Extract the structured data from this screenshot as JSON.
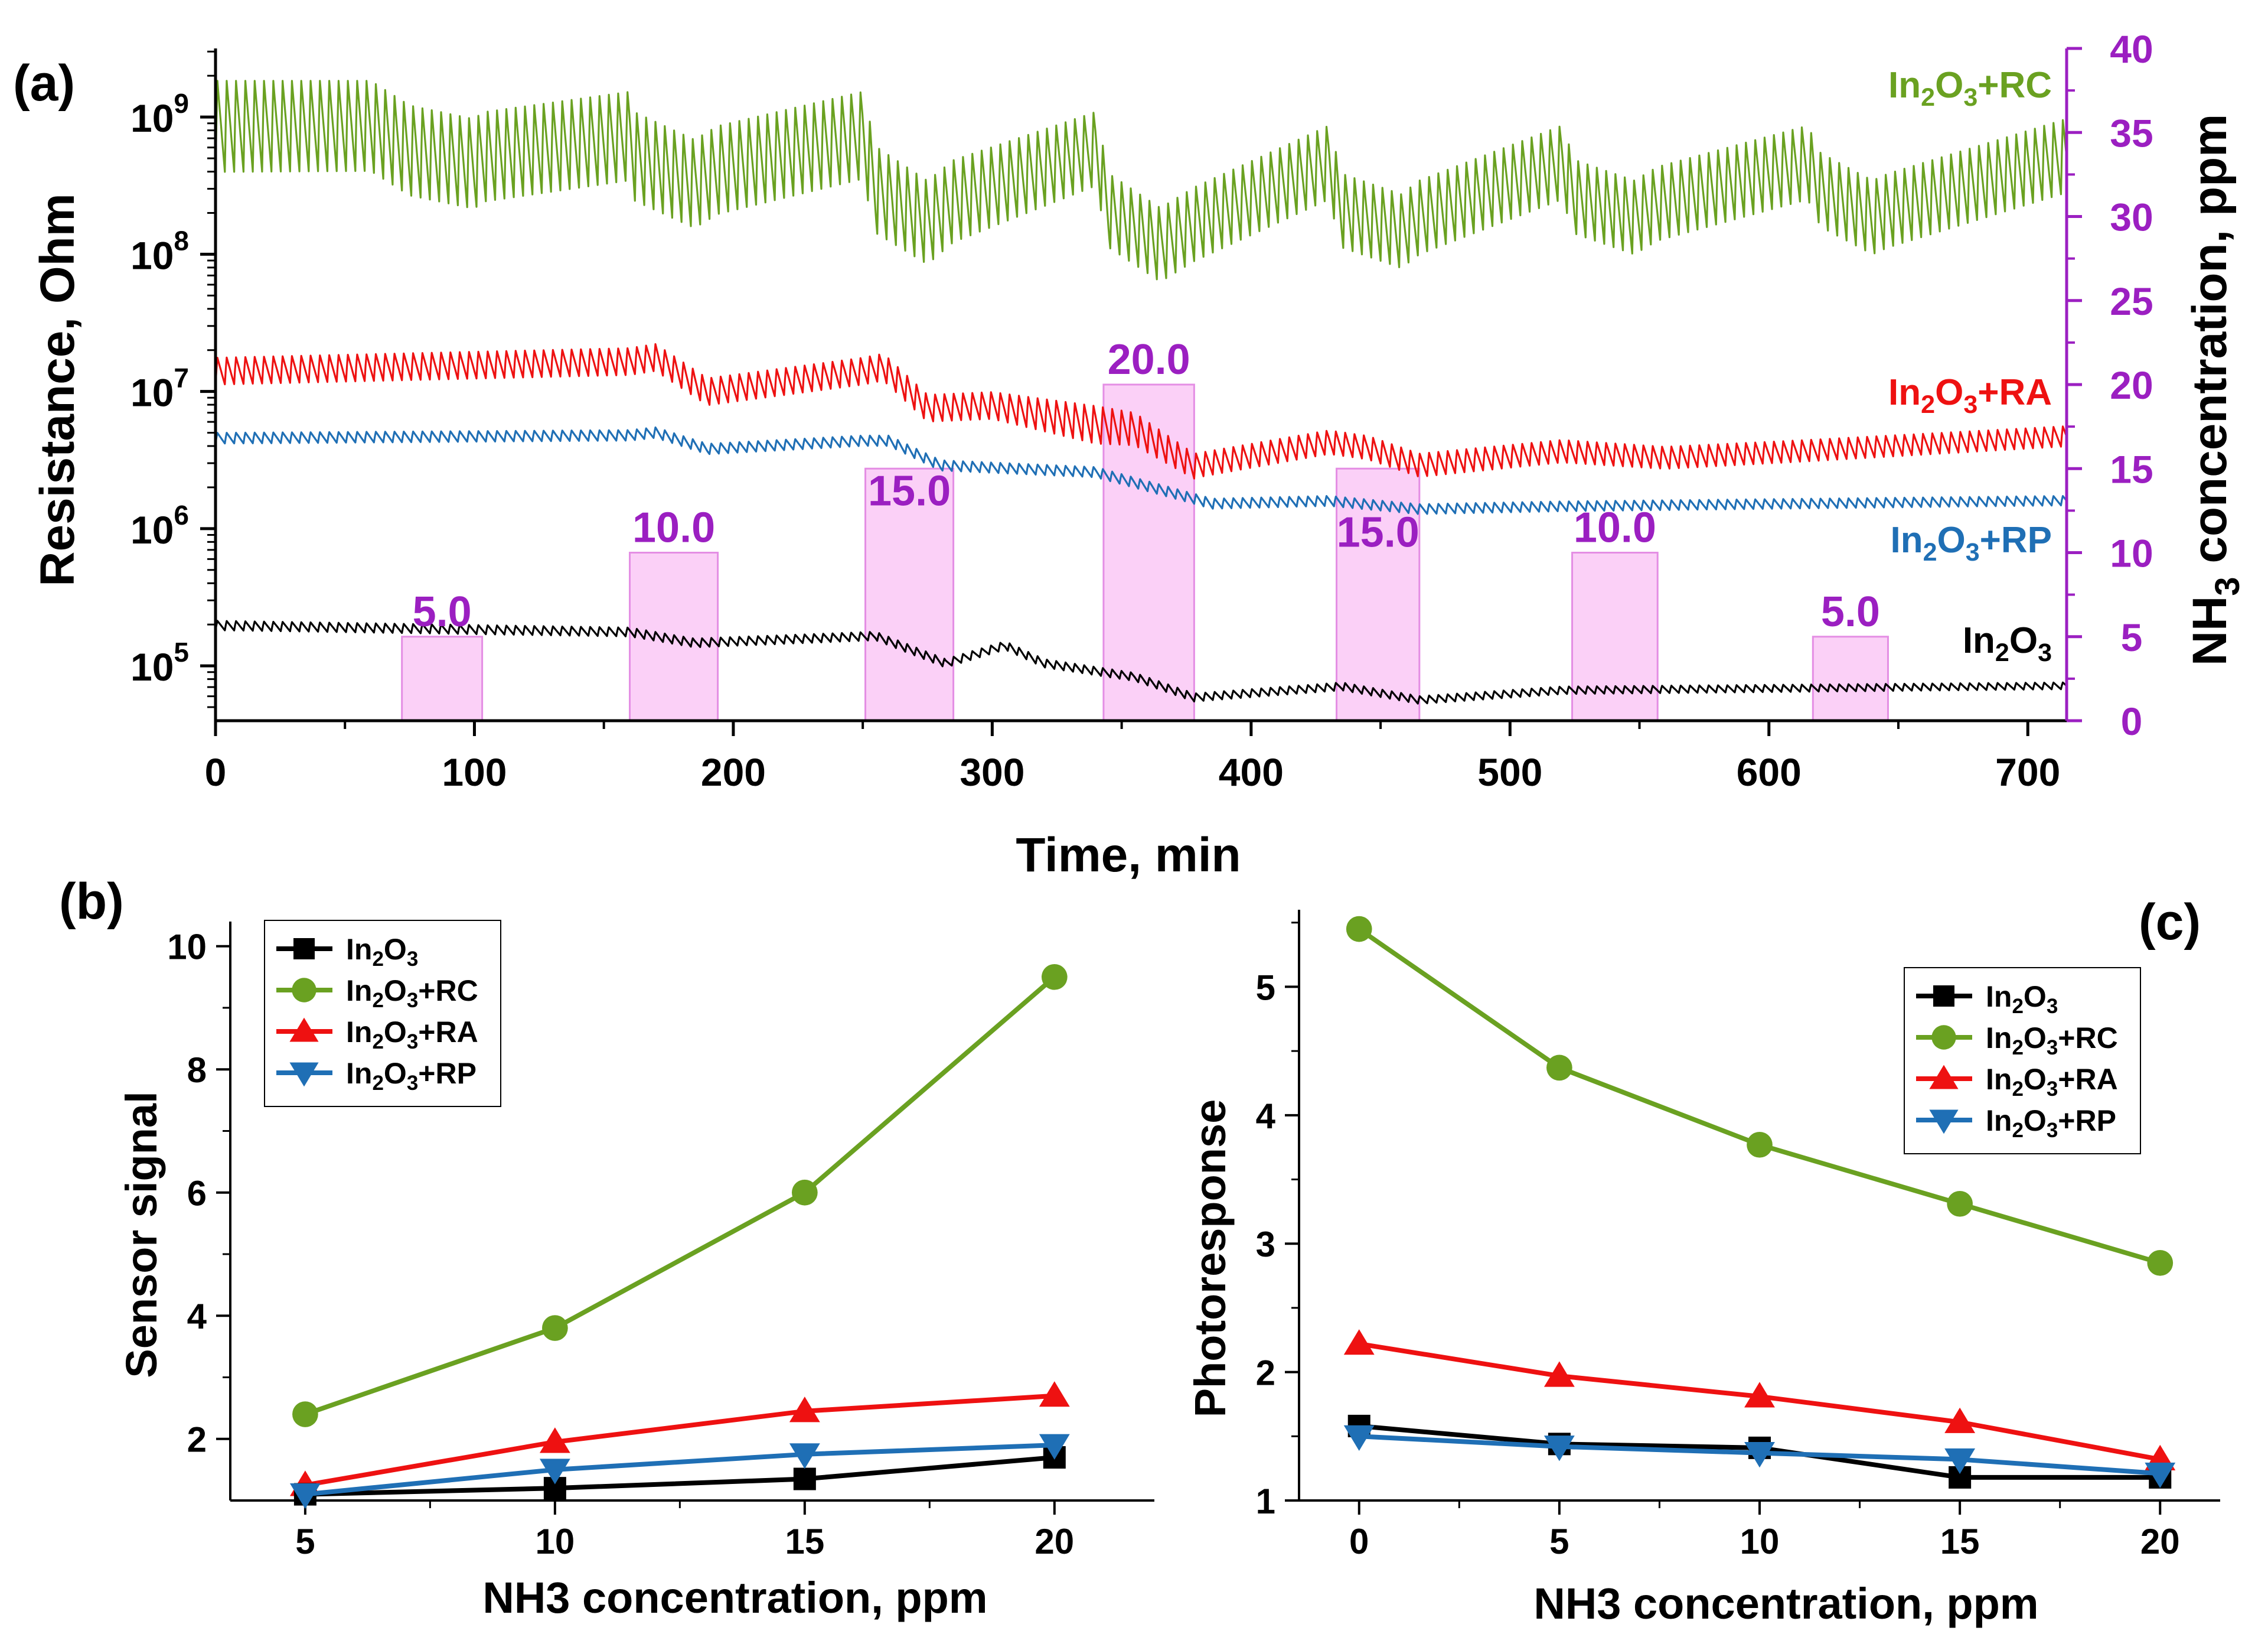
{
  "colors": {
    "black": "#000000",
    "green": "#6aa121",
    "red": "#ee1111",
    "blue": "#1f6fb5",
    "purple": "#9b1fc1",
    "bar_fill": "#fbd0f7",
    "bar_edge": "#e48ee4"
  },
  "chart_data": [
    {
      "panel": "(a)",
      "type": "line",
      "xlabel": "Time, min",
      "ylabel": "Resistance, Ohm",
      "y2label": "NH3 concentration, ppm",
      "xlim": [
        0,
        715
      ],
      "ylim_log10": [
        4.6,
        9.5
      ],
      "y2lim": [
        0,
        40
      ],
      "xticks": [
        "0",
        "100",
        "200",
        "300",
        "400",
        "500",
        "600",
        "700"
      ],
      "yticks": [
        {
          "base": "10",
          "exp": "5"
        },
        {
          "base": "10",
          "exp": "6"
        },
        {
          "base": "10",
          "exp": "7"
        },
        {
          "base": "10",
          "exp": "8"
        },
        {
          "base": "10",
          "exp": "9"
        }
      ],
      "y2ticks": [
        "0",
        "5",
        "10",
        "15",
        "20",
        "25",
        "30",
        "35",
        "40"
      ],
      "series_labels": [
        {
          "main": "In",
          "sub1": "2",
          "mid": "O",
          "sub2": "3",
          "tail": "+RC"
        },
        {
          "main": "In",
          "sub1": "2",
          "mid": "O",
          "sub2": "3",
          "tail": "+RA"
        },
        {
          "main": "In",
          "sub1": "2",
          "mid": "O",
          "sub2": "3",
          "tail": "+RP"
        },
        {
          "main": "In",
          "sub1": "2",
          "mid": "O",
          "sub2": "3",
          "tail": ""
        }
      ],
      "nh3_pulses": [
        {
          "start": 72,
          "end": 103,
          "ppm": 5.0,
          "label": "5.0"
        },
        {
          "start": 160,
          "end": 194,
          "ppm": 10.0,
          "label": "10.0"
        },
        {
          "start": 251,
          "end": 285,
          "ppm": 15.0,
          "label": "15.0"
        },
        {
          "start": 343,
          "end": 378,
          "ppm": 20.0,
          "label": "20.0"
        },
        {
          "start": 433,
          "end": 465,
          "ppm": 15.0,
          "label": "15.0"
        },
        {
          "start": 524,
          "end": 557,
          "ppm": 10.0,
          "label": "10.0"
        },
        {
          "start": 617,
          "end": 646,
          "ppm": 5.0,
          "label": "5.0"
        }
      ],
      "resistance_profiles_log10": {
        "In2O3+RC": {
          "top": [
            [
              0,
              9.28
            ],
            [
              60,
              9.28
            ],
            [
              75,
              9.1
            ],
            [
              100,
              9.0
            ],
            [
              103,
              9.05
            ],
            [
              160,
              9.2
            ],
            [
              162,
              9.05
            ],
            [
              185,
              8.85
            ],
            [
              194,
              8.95
            ],
            [
              250,
              9.2
            ],
            [
              255,
              8.8
            ],
            [
              275,
              8.55
            ],
            [
              285,
              8.7
            ],
            [
              340,
              9.05
            ],
            [
              345,
              8.6
            ],
            [
              365,
              8.35
            ],
            [
              378,
              8.5
            ],
            [
              430,
              8.95
            ],
            [
              435,
              8.6
            ],
            [
              458,
              8.45
            ],
            [
              465,
              8.55
            ],
            [
              520,
              8.95
            ],
            [
              525,
              8.7
            ],
            [
              548,
              8.55
            ],
            [
              557,
              8.65
            ],
            [
              615,
              8.95
            ],
            [
              620,
              8.75
            ],
            [
              640,
              8.55
            ],
            [
              646,
              8.6
            ],
            [
              715,
              9.0
            ]
          ],
          "amp": [
            [
              0,
              0.68
            ],
            [
              250,
              0.65
            ],
            [
              340,
              0.55
            ],
            [
              715,
              0.55
            ]
          ],
          "period": 3.6
        },
        "In2O3+RA": {
          "top": [
            [
              0,
              7.25
            ],
            [
              160,
              7.32
            ],
            [
              170,
              7.35
            ],
            [
              190,
              7.1
            ],
            [
              250,
              7.25
            ],
            [
              258,
              7.28
            ],
            [
              275,
              6.98
            ],
            [
              300,
              7.0
            ],
            [
              340,
              6.9
            ],
            [
              355,
              6.85
            ],
            [
              378,
              6.55
            ],
            [
              430,
              6.72
            ],
            [
              445,
              6.68
            ],
            [
              465,
              6.55
            ],
            [
              520,
              6.65
            ],
            [
              560,
              6.6
            ],
            [
              615,
              6.65
            ],
            [
              715,
              6.75
            ]
          ],
          "amp": [
            [
              0,
              0.2
            ],
            [
              300,
              0.2
            ],
            [
              340,
              0.28
            ],
            [
              380,
              0.18
            ],
            [
              715,
              0.15
            ]
          ],
          "period": 3.6
        },
        "In2O3+RP": {
          "top": [
            [
              0,
              6.7
            ],
            [
              160,
              6.72
            ],
            [
              170,
              6.74
            ],
            [
              190,
              6.62
            ],
            [
              250,
              6.68
            ],
            [
              260,
              6.68
            ],
            [
              280,
              6.5
            ],
            [
              340,
              6.45
            ],
            [
              385,
              6.22
            ],
            [
              430,
              6.24
            ],
            [
              465,
              6.18
            ],
            [
              520,
              6.2
            ],
            [
              715,
              6.24
            ]
          ],
          "amp": [
            [
              0,
              0.08
            ],
            [
              715,
              0.07
            ]
          ],
          "period": 3.6
        },
        "In2O3": {
          "top": [
            [
              0,
              5.33
            ],
            [
              160,
              5.28
            ],
            [
              185,
              5.2
            ],
            [
              255,
              5.25
            ],
            [
              282,
              5.05
            ],
            [
              305,
              5.18
            ],
            [
              320,
              5.05
            ],
            [
              355,
              4.95
            ],
            [
              378,
              4.8
            ],
            [
              435,
              4.88
            ],
            [
              465,
              4.78
            ],
            [
              520,
              4.85
            ],
            [
              715,
              4.88
            ]
          ],
          "amp": [
            [
              0,
              0.07
            ],
            [
              715,
              0.05
            ]
          ],
          "period": 3.6
        }
      }
    },
    {
      "panel": "(b)",
      "type": "line",
      "xlabel": "NH3 concentration, ppm",
      "ylabel": "Sensor signal",
      "xlim": [
        3.5,
        22
      ],
      "ylim": [
        1,
        10.4
      ],
      "xticks": [
        "5",
        "10",
        "15",
        "20"
      ],
      "yticks": [
        "2",
        "4",
        "6",
        "8",
        "10"
      ],
      "x": [
        5,
        10,
        15,
        20
      ],
      "series": [
        {
          "name": "In2O3",
          "marker": "square",
          "values": [
            1.1,
            1.2,
            1.35,
            1.7
          ]
        },
        {
          "name": "In2O3+RC",
          "marker": "circle",
          "values": [
            2.4,
            3.8,
            6.0,
            9.5
          ]
        },
        {
          "name": "In2O3+RA",
          "marker": "triangle-up",
          "values": [
            1.25,
            1.95,
            2.45,
            2.7
          ]
        },
        {
          "name": "In2O3+RP",
          "marker": "triangle-down",
          "values": [
            1.1,
            1.5,
            1.75,
            1.9
          ]
        }
      ],
      "legend": [
        {
          "main": "In",
          "sub1": "2",
          "mid": "O",
          "sub2": "3",
          "tail": ""
        },
        {
          "main": "In",
          "sub1": "2",
          "mid": "O",
          "sub2": "3",
          "tail": "+RC"
        },
        {
          "main": "In",
          "sub1": "2",
          "mid": "O",
          "sub2": "3",
          "tail": "+RA"
        },
        {
          "main": "In",
          "sub1": "2",
          "mid": "O",
          "sub2": "3",
          "tail": "+RP"
        }
      ],
      "legend_position": "top-left"
    },
    {
      "panel": "(c)",
      "type": "line",
      "xlabel": "NH3 concentration, ppm",
      "ylabel": "Photoresponse",
      "xlim": [
        -1.5,
        21.5
      ],
      "ylim": [
        1,
        5.6
      ],
      "xticks": [
        "0",
        "5",
        "10",
        "15",
        "20"
      ],
      "yticks": [
        "1",
        "2",
        "3",
        "4",
        "5"
      ],
      "x": [
        0,
        5,
        10,
        15,
        20
      ],
      "series": [
        {
          "name": "In2O3",
          "marker": "square",
          "values": [
            1.58,
            1.44,
            1.41,
            1.18,
            1.18
          ]
        },
        {
          "name": "In2O3+RC",
          "marker": "circle",
          "values": [
            5.45,
            4.37,
            3.77,
            3.31,
            2.85
          ]
        },
        {
          "name": "In2O3+RA",
          "marker": "triangle-up",
          "values": [
            2.22,
            1.97,
            1.81,
            1.61,
            1.32
          ]
        },
        {
          "name": "In2O3+RP",
          "marker": "triangle-down",
          "values": [
            1.5,
            1.42,
            1.37,
            1.32,
            1.21
          ]
        }
      ],
      "legend": [
        {
          "main": "In",
          "sub1": "2",
          "mid": "O",
          "sub2": "3",
          "tail": ""
        },
        {
          "main": "In",
          "sub1": "2",
          "mid": "O",
          "sub2": "3",
          "tail": "+RC"
        },
        {
          "main": "In",
          "sub1": "2",
          "mid": "O",
          "sub2": "3",
          "tail": "+RA"
        },
        {
          "main": "In",
          "sub1": "2",
          "mid": "O",
          "sub2": "3",
          "tail": "+RP"
        }
      ],
      "legend_position": "top-right"
    }
  ]
}
